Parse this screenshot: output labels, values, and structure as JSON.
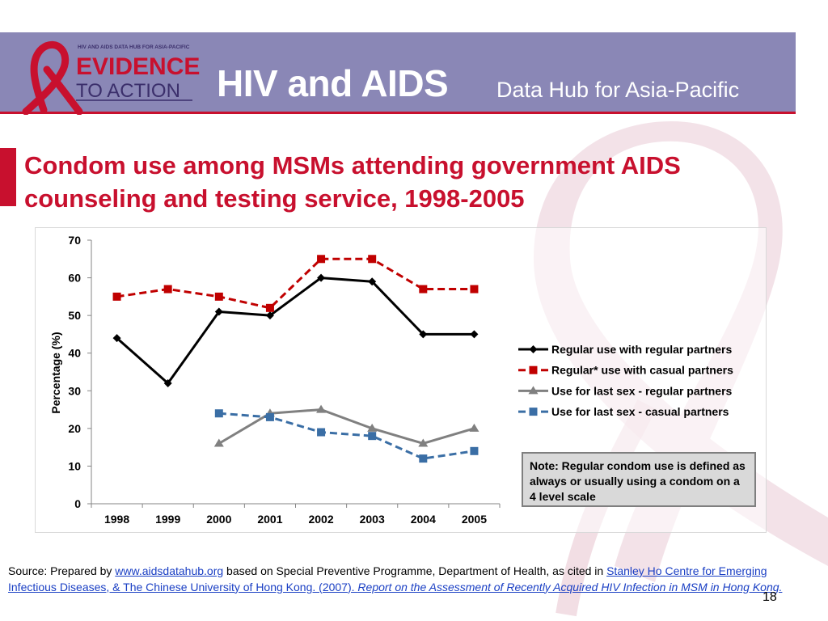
{
  "header": {
    "logo_top_line": "HIV AND AIDS DATA HUB FOR ASIA-PACIFIC",
    "logo_line1": "EVIDENCE",
    "logo_line2": "TO ACTION",
    "title_main": "HIV and AIDS",
    "title_sub": "Data Hub for Asia-Pacific"
  },
  "slide_title": "Condom use among MSMs attending government AIDS counseling and testing service, 1998-2005",
  "note": "Note: Regular condom use is defined as always or usually using a condom on  a 4 level scale",
  "source": {
    "prefix": "Source: Prepared by ",
    "link1": "www.aidsdatahub.org",
    "middle": " based on Special Preventive Programme, Department of Health, as cited in ",
    "link2": "Stanley Ho Centre for Emerging Infectious Diseases, & The Chinese University of Hong Kong. (2007). ",
    "link3": "Report on the Assessment of Recently Acquired HIV Infection in MSM in Hong Kong."
  },
  "page_number": "18",
  "colors": {
    "brand_red": "#c8102e",
    "header_purple": "#8a87b6",
    "series_black": "#000000",
    "series_red": "#c00000",
    "series_gray": "#808080",
    "series_blue": "#3a6ea5"
  },
  "chart_data": {
    "type": "line",
    "title": "",
    "xlabel": "",
    "ylabel": "Percentage (%)",
    "ylim": [
      0,
      70
    ],
    "yticks": [
      0,
      10,
      20,
      30,
      40,
      50,
      60,
      70
    ],
    "x": [
      "1998",
      "1999",
      "2000",
      "2001",
      "2002",
      "2003",
      "2004",
      "2005"
    ],
    "legend_position": "right",
    "series": [
      {
        "name": "Regular use with regular partners",
        "values": [
          44,
          32,
          51,
          50,
          60,
          59,
          45,
          45
        ],
        "color": "#000000",
        "dash": "solid",
        "marker": "diamond"
      },
      {
        "name": "Regular* use with casual partners",
        "values": [
          55,
          57,
          55,
          52,
          65,
          65,
          57,
          57
        ],
        "color": "#c00000",
        "dash": "dashed",
        "marker": "square"
      },
      {
        "name": "Use for last sex - regular partners",
        "values": [
          null,
          null,
          16,
          24,
          25,
          20,
          16,
          20
        ],
        "color": "#808080",
        "dash": "solid",
        "marker": "triangle"
      },
      {
        "name": "Use for last sex - casual partners",
        "values": [
          null,
          null,
          24,
          23,
          19,
          18,
          12,
          14
        ],
        "color": "#3a6ea5",
        "dash": "dashed",
        "marker": "square"
      }
    ]
  }
}
